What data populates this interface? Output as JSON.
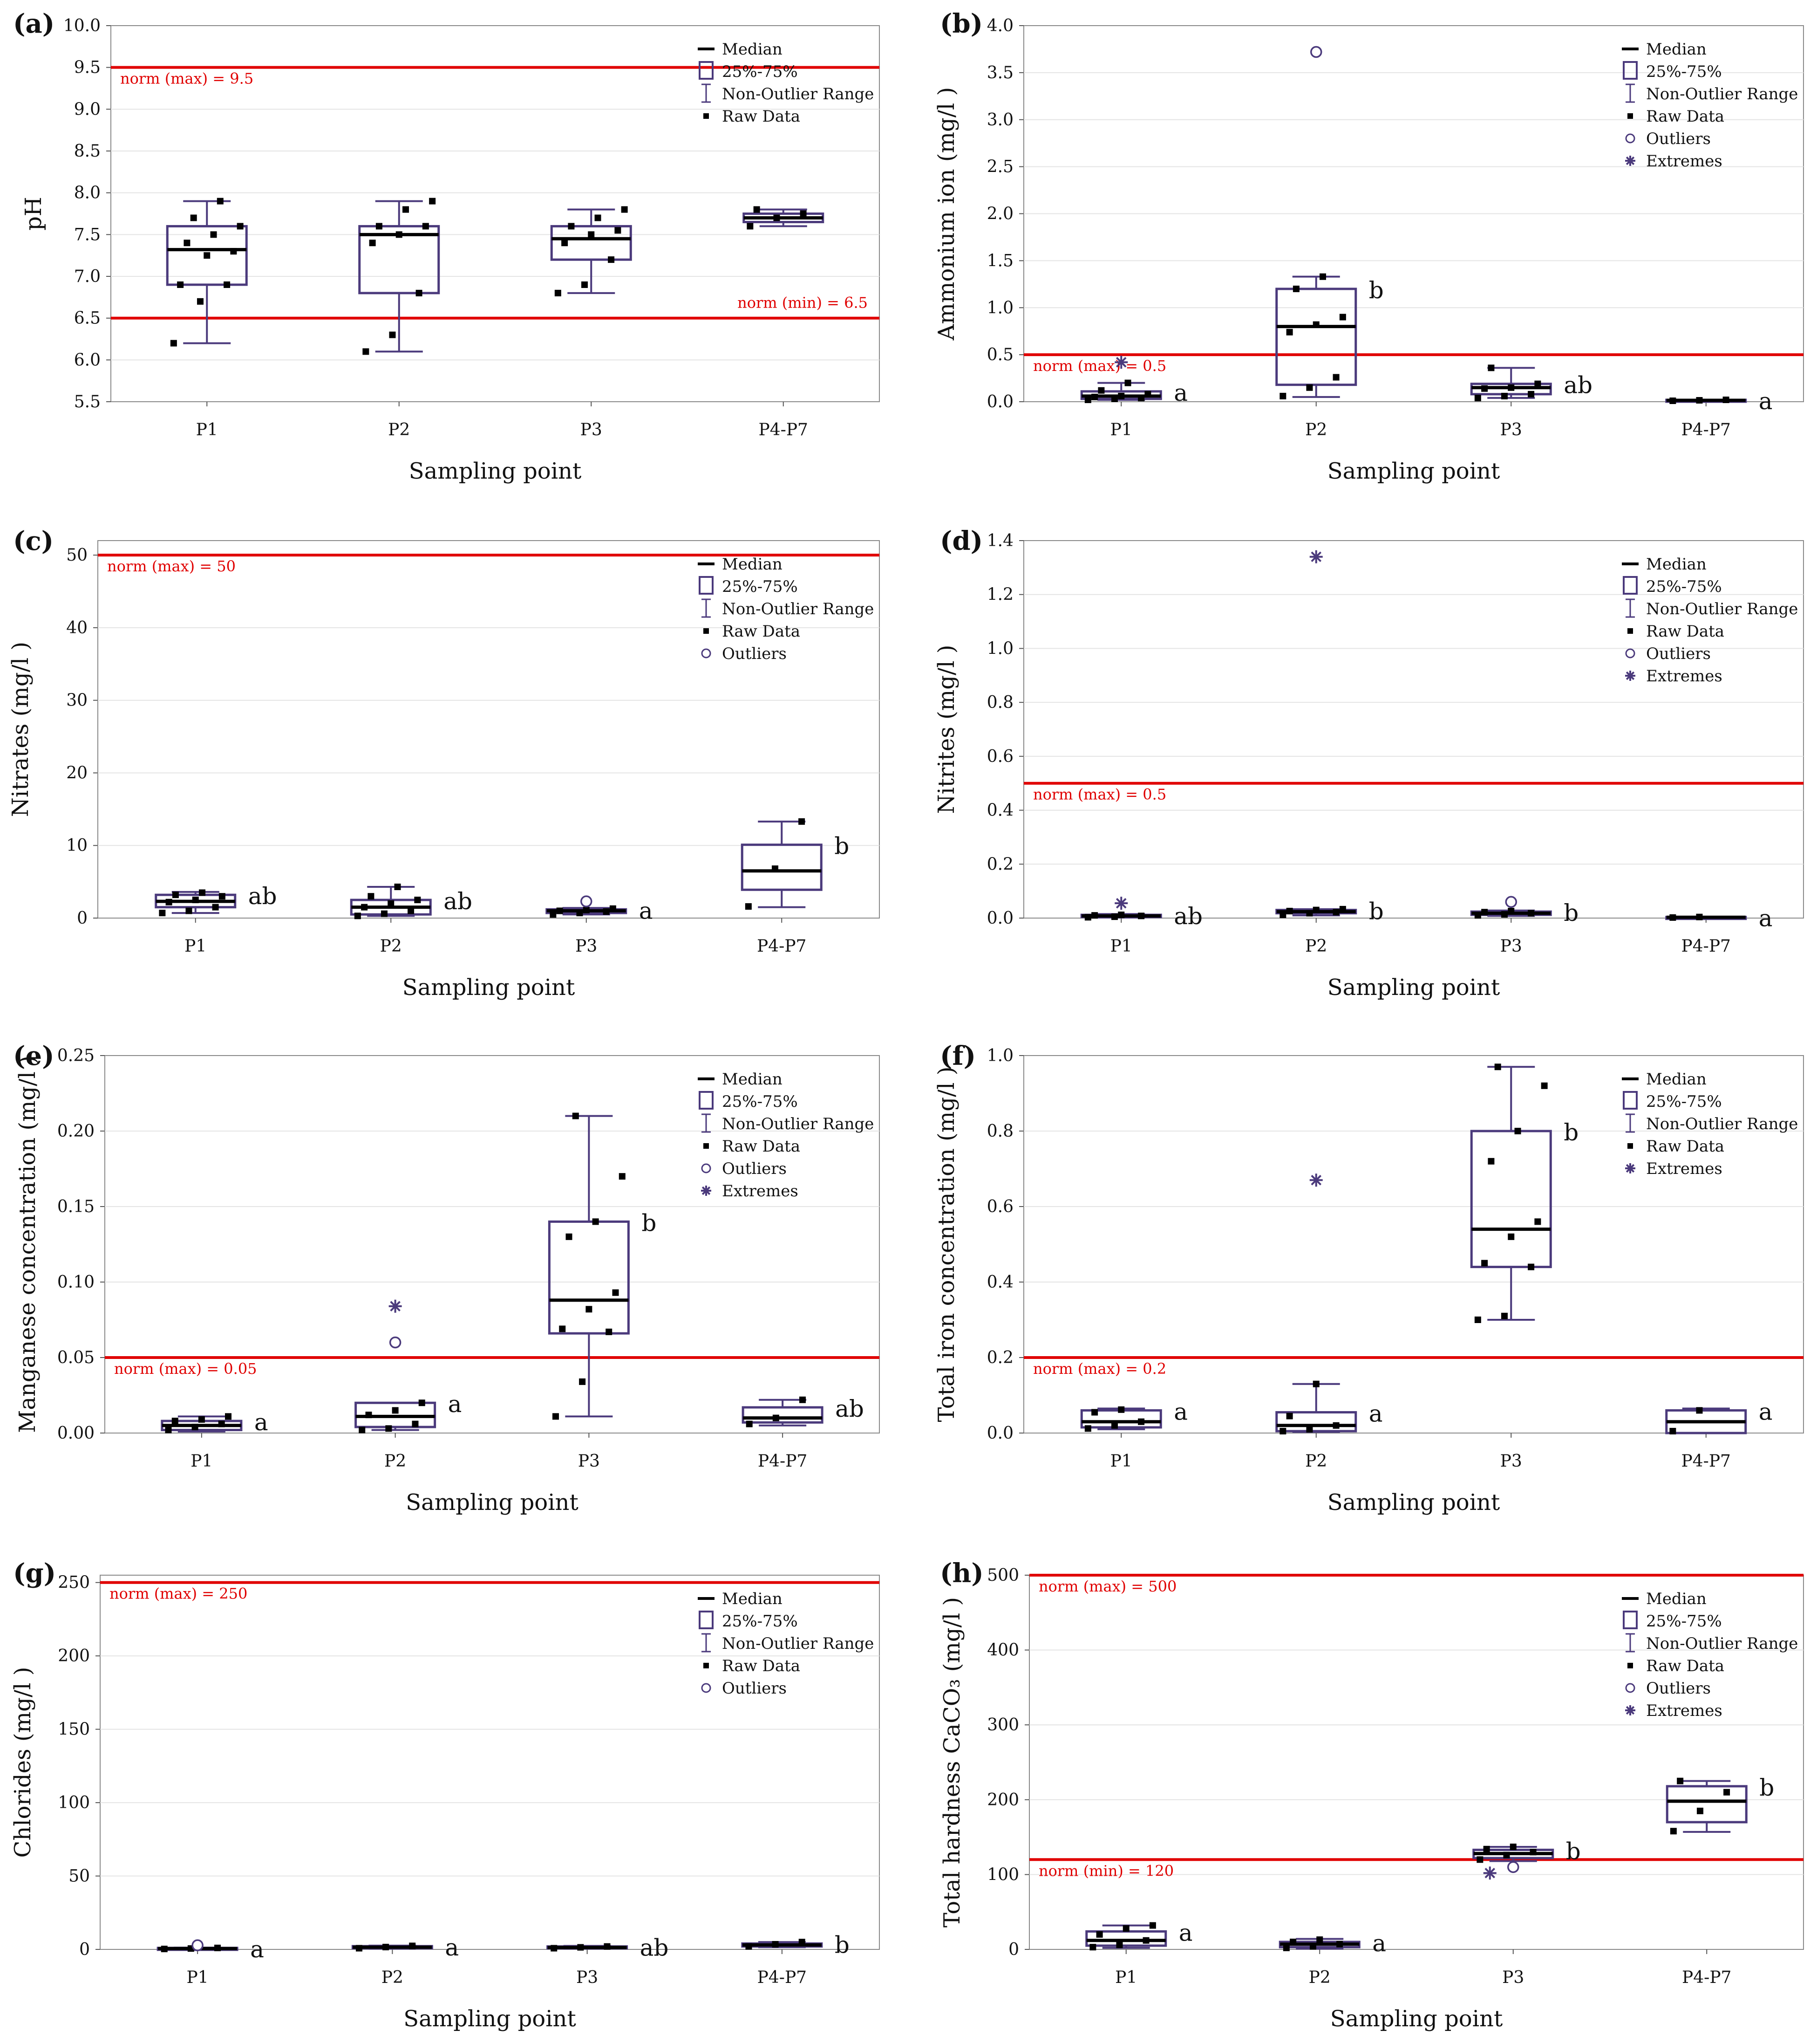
{
  "figure": {
    "x_axis_label": "Sampling point",
    "legend_labels": {
      "median": "Median",
      "iqr": "25%-75%",
      "range": "Non-Outlier Range",
      "raw": "Raw Data",
      "outliers": "Outliers",
      "extremes": "Extremes"
    }
  },
  "chart_data": [
    {
      "panel": "(a)",
      "type": "box",
      "ylabel": "pH",
      "ylim": [
        5.5,
        10.0
      ],
      "yticks": [
        "5.5",
        "6.0",
        "6.5",
        "7.0",
        "7.5",
        "8.0",
        "8.5",
        "9.0",
        "9.5",
        "10.0"
      ],
      "categories": [
        "P1",
        "P2",
        "P3",
        "P4-P7"
      ],
      "legend": [
        "median",
        "iqr",
        "range",
        "raw"
      ],
      "norms": [
        {
          "value": 9.5,
          "label": "norm (max) = 9.5",
          "align": "left"
        },
        {
          "value": 6.5,
          "label": "norm (min) = 6.5",
          "align": "right"
        }
      ],
      "boxes": [
        {
          "q1": 6.9,
          "median": 7.32,
          "q3": 7.6,
          "lo": 6.2,
          "hi": 7.9,
          "raw": [
            6.2,
            6.7,
            6.9,
            6.9,
            7.25,
            7.3,
            7.4,
            7.5,
            7.6,
            7.7,
            7.9
          ],
          "outliers": [],
          "extremes": [],
          "sig": ""
        },
        {
          "q1": 6.8,
          "median": 7.5,
          "q3": 7.6,
          "lo": 6.1,
          "hi": 7.9,
          "raw": [
            6.1,
            6.3,
            6.8,
            7.4,
            7.5,
            7.6,
            7.6,
            7.8,
            7.9
          ],
          "outliers": [],
          "extremes": [],
          "sig": ""
        },
        {
          "q1": 7.2,
          "median": 7.45,
          "q3": 7.6,
          "lo": 6.8,
          "hi": 7.8,
          "raw": [
            6.8,
            6.9,
            7.2,
            7.4,
            7.5,
            7.55,
            7.6,
            7.7,
            7.8
          ],
          "outliers": [],
          "extremes": [],
          "sig": ""
        },
        {
          "q1": 7.65,
          "median": 7.7,
          "q3": 7.75,
          "lo": 7.6,
          "hi": 7.8,
          "raw": [
            7.6,
            7.7,
            7.75,
            7.8
          ],
          "outliers": [],
          "extremes": [],
          "sig": ""
        }
      ]
    },
    {
      "panel": "(b)",
      "type": "box",
      "ylabel": "Ammonium ion (mg/l )",
      "ylim": [
        0.0,
        4.0
      ],
      "yticks": [
        "0.0",
        "0.5",
        "1.0",
        "1.5",
        "2.0",
        "2.5",
        "3.0",
        "3.5",
        "4.0"
      ],
      "categories": [
        "P1",
        "P2",
        "P3",
        "P4-P7"
      ],
      "legend": [
        "median",
        "iqr",
        "range",
        "raw",
        "outliers",
        "extremes"
      ],
      "norms": [
        {
          "value": 0.5,
          "label": "norm (max) = 0.5",
          "align": "left"
        }
      ],
      "boxes": [
        {
          "q1": 0.03,
          "median": 0.06,
          "q3": 0.11,
          "lo": 0.02,
          "hi": 0.2,
          "raw": [
            0.02,
            0.03,
            0.04,
            0.05,
            0.06,
            0.08,
            0.12,
            0.2
          ],
          "outliers": [],
          "extremes": [
            0.42
          ],
          "sig": "a"
        },
        {
          "q1": 0.18,
          "median": 0.8,
          "q3": 1.2,
          "lo": 0.05,
          "hi": 1.33,
          "raw": [
            0.06,
            0.15,
            0.26,
            0.74,
            0.82,
            0.9,
            1.2,
            1.33
          ],
          "outliers": [
            3.72
          ],
          "extremes": [],
          "sig": "b"
        },
        {
          "q1": 0.08,
          "median": 0.15,
          "q3": 0.19,
          "lo": 0.04,
          "hi": 0.36,
          "raw": [
            0.04,
            0.06,
            0.08,
            0.14,
            0.15,
            0.19,
            0.36
          ],
          "outliers": [],
          "extremes": [],
          "sig": "ab"
        },
        {
          "q1": 0.01,
          "median": 0.015,
          "q3": 0.02,
          "lo": 0.01,
          "hi": 0.02,
          "raw": [
            0.01,
            0.015,
            0.02
          ],
          "outliers": [],
          "extremes": [],
          "sig": "a"
        }
      ]
    },
    {
      "panel": "(c)",
      "type": "box",
      "ylabel": "Nitrates (mg/l )",
      "ylim": [
        0,
        52
      ],
      "yticks": [
        "0",
        "10",
        "20",
        "30",
        "40",
        "50"
      ],
      "categories": [
        "P1",
        "P2",
        "P3",
        "P4-P7"
      ],
      "legend": [
        "median",
        "iqr",
        "range",
        "raw",
        "outliers"
      ],
      "norms": [
        {
          "value": 50,
          "label": "norm (max) = 50",
          "align": "left"
        }
      ],
      "boxes": [
        {
          "q1": 1.5,
          "median": 2.3,
          "q3": 3.2,
          "lo": 0.7,
          "hi": 3.6,
          "raw": [
            0.7,
            1.0,
            1.5,
            2.2,
            2.5,
            3.0,
            3.2,
            3.5
          ],
          "outliers": [],
          "extremes": [],
          "sig": "ab"
        },
        {
          "q1": 0.5,
          "median": 1.5,
          "q3": 2.5,
          "lo": 0.3,
          "hi": 4.3,
          "raw": [
            0.3,
            0.6,
            1.0,
            1.5,
            2.0,
            2.5,
            3.0,
            4.3
          ],
          "outliers": [],
          "extremes": [],
          "sig": "ab"
        },
        {
          "q1": 0.7,
          "median": 1.0,
          "q3": 1.2,
          "lo": 0.5,
          "hi": 1.4,
          "raw": [
            0.5,
            0.7,
            0.9,
            1.0,
            1.1,
            1.3
          ],
          "outliers": [
            2.3
          ],
          "extremes": [],
          "sig": "a"
        },
        {
          "q1": 3.9,
          "median": 6.5,
          "q3": 10.1,
          "lo": 1.5,
          "hi": 13.3,
          "raw": [
            1.6,
            6.8,
            13.3
          ],
          "outliers": [],
          "extremes": [],
          "sig": "b"
        }
      ]
    },
    {
      "panel": "(d)",
      "type": "box",
      "ylabel": "Nitrites (mg/l )",
      "ylim": [
        0.0,
        1.4
      ],
      "yticks": [
        "0.0",
        "0.2",
        "0.4",
        "0.6",
        "0.8",
        "1.0",
        "1.2",
        "1.4"
      ],
      "categories": [
        "P1",
        "P2",
        "P3",
        "P4-P7"
      ],
      "legend": [
        "median",
        "iqr",
        "range",
        "raw",
        "outliers",
        "extremes"
      ],
      "norms": [
        {
          "value": 0.5,
          "label": "norm (max) = 0.5",
          "align": "left"
        }
      ],
      "boxes": [
        {
          "q1": 0.004,
          "median": 0.008,
          "q3": 0.012,
          "lo": 0.002,
          "hi": 0.015,
          "raw": [
            0.003,
            0.005,
            0.008,
            0.01,
            0.012
          ],
          "outliers": [],
          "extremes": [
            0.055
          ],
          "sig": "ab"
        },
        {
          "q1": 0.018,
          "median": 0.024,
          "q3": 0.03,
          "lo": 0.01,
          "hi": 0.033,
          "raw": [
            0.012,
            0.018,
            0.022,
            0.026,
            0.03,
            0.033
          ],
          "outliers": [],
          "extremes": [
            1.34
          ],
          "sig": "b"
        },
        {
          "q1": 0.012,
          "median": 0.018,
          "q3": 0.024,
          "lo": 0.008,
          "hi": 0.028,
          "raw": [
            0.01,
            0.014,
            0.018,
            0.022,
            0.026
          ],
          "outliers": [
            0.06
          ],
          "extremes": [],
          "sig": "b"
        },
        {
          "q1": 0.002,
          "median": 0.003,
          "q3": 0.004,
          "lo": 0.001,
          "hi": 0.005,
          "raw": [
            0.002,
            0.004
          ],
          "outliers": [],
          "extremes": [],
          "sig": "a"
        }
      ]
    },
    {
      "panel": "(e)",
      "type": "box",
      "ylabel": "Manganese concentration (mg/l )",
      "ylim": [
        0.0,
        0.25
      ],
      "yticks": [
        "0.00",
        "0.05",
        "0.10",
        "0.15",
        "0.20",
        "0.25"
      ],
      "categories": [
        "P1",
        "P2",
        "P3",
        "P4-P7"
      ],
      "legend": [
        "median",
        "iqr",
        "range",
        "raw",
        "outliers",
        "extremes"
      ],
      "norms": [
        {
          "value": 0.05,
          "label": "norm (max) = 0.05",
          "align": "left"
        }
      ],
      "boxes": [
        {
          "q1": 0.002,
          "median": 0.005,
          "q3": 0.008,
          "lo": 0.001,
          "hi": 0.011,
          "raw": [
            0.002,
            0.004,
            0.006,
            0.008,
            0.009,
            0.011
          ],
          "outliers": [],
          "extremes": [],
          "sig": "a"
        },
        {
          "q1": 0.004,
          "median": 0.011,
          "q3": 0.02,
          "lo": 0.002,
          "hi": 0.02,
          "raw": [
            0.002,
            0.003,
            0.006,
            0.012,
            0.015,
            0.02
          ],
          "outliers": [
            0.06
          ],
          "extremes": [
            0.084
          ],
          "sig": "a"
        },
        {
          "q1": 0.066,
          "median": 0.088,
          "q3": 0.14,
          "lo": 0.011,
          "hi": 0.21,
          "raw": [
            0.011,
            0.034,
            0.067,
            0.069,
            0.082,
            0.093,
            0.13,
            0.14,
            0.17,
            0.21
          ],
          "outliers": [],
          "extremes": [],
          "sig": "b"
        },
        {
          "q1": 0.007,
          "median": 0.01,
          "q3": 0.017,
          "lo": 0.005,
          "hi": 0.022,
          "raw": [
            0.006,
            0.01,
            0.022
          ],
          "outliers": [],
          "extremes": [],
          "sig": "ab"
        }
      ]
    },
    {
      "panel": "(f)",
      "type": "box",
      "ylabel": "Total iron concentration (mg/l )",
      "ylim": [
        0.0,
        1.0
      ],
      "yticks": [
        "0.0",
        "0.2",
        "0.4",
        "0.6",
        "0.8",
        "1.0"
      ],
      "categories": [
        "P1",
        "P2",
        "P3",
        "P4-P7"
      ],
      "legend": [
        "median",
        "iqr",
        "range",
        "raw",
        "extremes"
      ],
      "norms": [
        {
          "value": 0.2,
          "label": "norm (max) = 0.2",
          "align": "left"
        }
      ],
      "boxes": [
        {
          "q1": 0.015,
          "median": 0.03,
          "q3": 0.06,
          "lo": 0.01,
          "hi": 0.065,
          "raw": [
            0.012,
            0.02,
            0.03,
            0.055,
            0.062
          ],
          "outliers": [],
          "extremes": [],
          "sig": "a"
        },
        {
          "q1": 0.005,
          "median": 0.02,
          "q3": 0.055,
          "lo": 0.003,
          "hi": 0.13,
          "raw": [
            0.005,
            0.01,
            0.02,
            0.045,
            0.13
          ],
          "outliers": [],
          "extremes": [
            0.67
          ],
          "sig": "a"
        },
        {
          "q1": 0.44,
          "median": 0.54,
          "q3": 0.8,
          "lo": 0.3,
          "hi": 0.97,
          "raw": [
            0.3,
            0.31,
            0.44,
            0.45,
            0.52,
            0.56,
            0.72,
            0.8,
            0.92,
            0.97
          ],
          "outliers": [],
          "extremes": [],
          "sig": "b"
        },
        {
          "q1": 0.0,
          "median": 0.03,
          "q3": 0.06,
          "lo": 0.0,
          "hi": 0.065,
          "raw": [
            0.005,
            0.06
          ],
          "outliers": [],
          "extremes": [],
          "sig": "a"
        }
      ]
    },
    {
      "panel": "(g)",
      "type": "box",
      "ylabel": "Chlorides (mg/l )",
      "ylim": [
        0,
        255
      ],
      "yticks": [
        "0",
        "50",
        "100",
        "150",
        "200",
        "250"
      ],
      "categories": [
        "P1",
        "P2",
        "P3",
        "P4-P7"
      ],
      "legend": [
        "median",
        "iqr",
        "range",
        "raw",
        "outliers"
      ],
      "norms": [
        {
          "value": 250,
          "label": "norm (max) = 250",
          "align": "left"
        }
      ],
      "boxes": [
        {
          "q1": 0.3,
          "median": 0.6,
          "q3": 1.0,
          "lo": 0.2,
          "hi": 1.2,
          "raw": [
            0.3,
            0.6,
            1.0
          ],
          "outliers": [
            2.8
          ],
          "extremes": [],
          "sig": "a"
        },
        {
          "q1": 0.8,
          "median": 1.5,
          "q3": 2.2,
          "lo": 0.5,
          "hi": 2.6,
          "raw": [
            0.8,
            1.6,
            2.4
          ],
          "outliers": [],
          "extremes": [],
          "sig": "a"
        },
        {
          "q1": 0.8,
          "median": 1.3,
          "q3": 2.0,
          "lo": 0.5,
          "hi": 2.4,
          "raw": [
            0.8,
            1.4,
            2.0
          ],
          "outliers": [],
          "extremes": [],
          "sig": "ab"
        },
        {
          "q1": 2.0,
          "median": 3.0,
          "q3": 4.0,
          "lo": 1.5,
          "hi": 5.0,
          "raw": [
            2.0,
            3.5,
            5.0
          ],
          "outliers": [],
          "extremes": [],
          "sig": "b"
        }
      ]
    },
    {
      "panel": "(h)",
      "type": "box",
      "ylabel": "Total hardness CaCO₃ (mg/l )",
      "ylim": [
        0,
        500
      ],
      "yticks": [
        "0",
        "100",
        "200",
        "300",
        "400",
        "500"
      ],
      "categories": [
        "P1",
        "P2",
        "P3",
        "P4-P7"
      ],
      "legend": [
        "median",
        "iqr",
        "range",
        "raw",
        "outliers",
        "extremes"
      ],
      "norms": [
        {
          "value": 500,
          "label": "norm (max) = 500",
          "align": "left"
        },
        {
          "value": 120,
          "label": "norm (min) = 120",
          "align": "left"
        }
      ],
      "boxes": [
        {
          "q1": 5,
          "median": 12,
          "q3": 24,
          "lo": 2,
          "hi": 32,
          "raw": [
            3,
            6,
            12,
            20,
            28,
            32
          ],
          "outliers": [],
          "extremes": [],
          "sig": "a"
        },
        {
          "q1": 3,
          "median": 7,
          "q3": 10,
          "lo": 1,
          "hi": 14,
          "raw": [
            2,
            4,
            7,
            10,
            13
          ],
          "outliers": [],
          "extremes": [],
          "sig": "a"
        },
        {
          "q1": 122,
          "median": 128,
          "q3": 133,
          "lo": 118,
          "hi": 137,
          "raw": [
            120,
            126,
            130,
            134,
            137
          ],
          "outliers": [
            110
          ],
          "extremes": [
            102
          ],
          "sig": "b"
        },
        {
          "q1": 170,
          "median": 198,
          "q3": 218,
          "lo": 157,
          "hi": 225,
          "raw": [
            158,
            185,
            210,
            225
          ],
          "outliers": [],
          "extremes": [],
          "sig": "b"
        }
      ]
    }
  ]
}
